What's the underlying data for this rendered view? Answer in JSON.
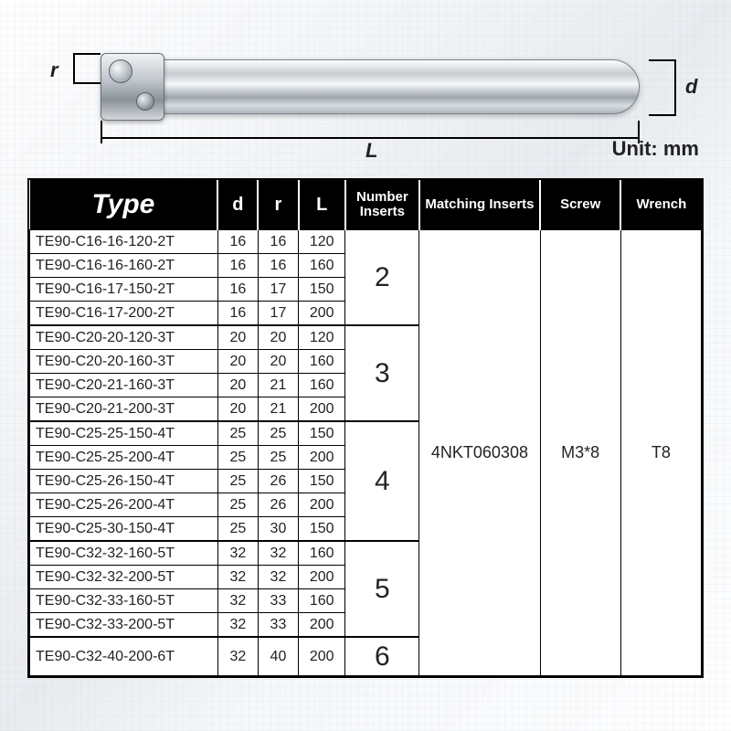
{
  "diagram": {
    "r_label": "r",
    "d_label": "d",
    "L_label": "L",
    "unit": "Unit: mm"
  },
  "table": {
    "headers": {
      "type": "Type",
      "d": "d",
      "r": "r",
      "L": "L",
      "num_inserts": "Number Inserts",
      "matching_inserts": "Matching Inserts",
      "screw": "Screw",
      "wrench": "Wrench"
    },
    "col_widths": {
      "type": "28%",
      "d": "6%",
      "r": "6%",
      "L": "7%",
      "num": "11%",
      "match": "18%",
      "screw": "12%",
      "wrench": "12%"
    },
    "matching_inserts": "4NKT060308",
    "screw": "M3*8",
    "wrench": "T8",
    "groups": [
      {
        "num": "2",
        "rows": [
          {
            "type": "TE90-C16-16-120-2T",
            "d": "16",
            "r": "16",
            "L": "120"
          },
          {
            "type": "TE90-C16-16-160-2T",
            "d": "16",
            "r": "16",
            "L": "160"
          },
          {
            "type": "TE90-C16-17-150-2T",
            "d": "16",
            "r": "17",
            "L": "150"
          },
          {
            "type": "TE90-C16-17-200-2T",
            "d": "16",
            "r": "17",
            "L": "200"
          }
        ]
      },
      {
        "num": "3",
        "rows": [
          {
            "type": "TE90-C20-20-120-3T",
            "d": "20",
            "r": "20",
            "L": "120"
          },
          {
            "type": "TE90-C20-20-160-3T",
            "d": "20",
            "r": "20",
            "L": "160"
          },
          {
            "type": "TE90-C20-21-160-3T",
            "d": "20",
            "r": "21",
            "L": "160"
          },
          {
            "type": "TE90-C20-21-200-3T",
            "d": "20",
            "r": "21",
            "L": "200"
          }
        ]
      },
      {
        "num": "4",
        "rows": [
          {
            "type": "TE90-C25-25-150-4T",
            "d": "25",
            "r": "25",
            "L": "150"
          },
          {
            "type": "TE90-C25-25-200-4T",
            "d": "25",
            "r": "25",
            "L": "200"
          },
          {
            "type": "TE90-C25-26-150-4T",
            "d": "25",
            "r": "26",
            "L": "150"
          },
          {
            "type": "TE90-C25-26-200-4T",
            "d": "25",
            "r": "26",
            "L": "200"
          },
          {
            "type": "TE90-C25-30-150-4T",
            "d": "25",
            "r": "30",
            "L": "150"
          }
        ]
      },
      {
        "num": "5",
        "rows": [
          {
            "type": "TE90-C32-32-160-5T",
            "d": "32",
            "r": "32",
            "L": "160"
          },
          {
            "type": "TE90-C32-32-200-5T",
            "d": "32",
            "r": "32",
            "L": "200"
          },
          {
            "type": "TE90-C32-33-160-5T",
            "d": "32",
            "r": "33",
            "L": "160"
          },
          {
            "type": "TE90-C32-33-200-5T",
            "d": "32",
            "r": "33",
            "L": "200"
          }
        ]
      },
      {
        "num": "6",
        "rows": [
          {
            "type": "TE90-C32-40-200-6T",
            "d": "32",
            "r": "40",
            "L": "200"
          }
        ]
      }
    ]
  }
}
